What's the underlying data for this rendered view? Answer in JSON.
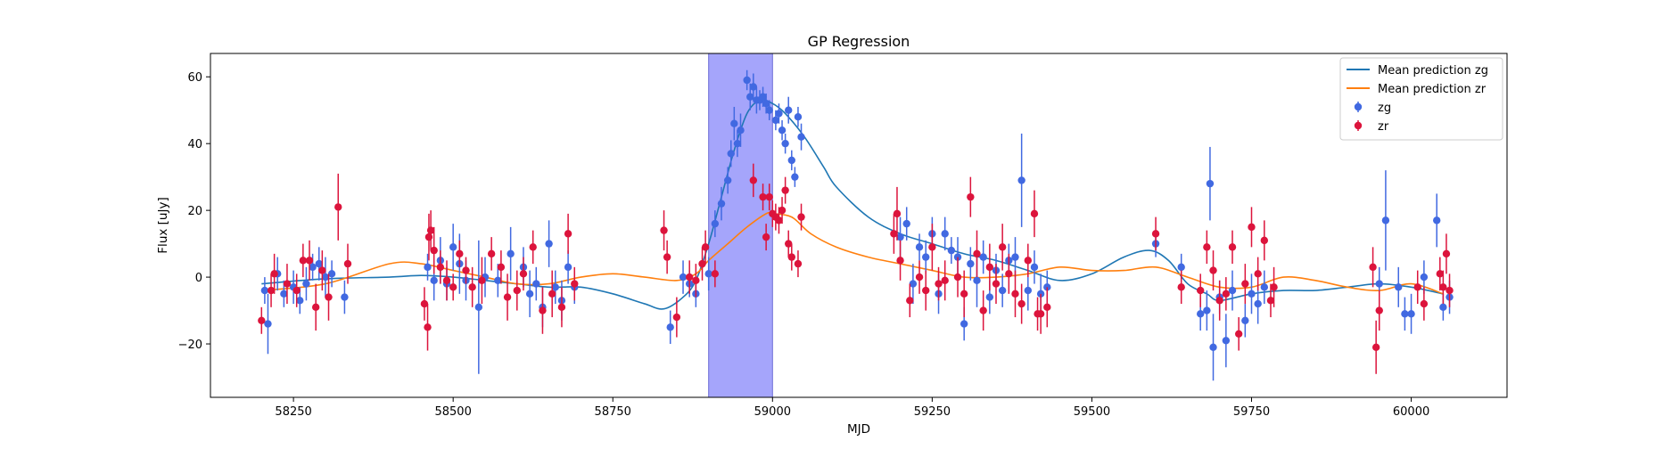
{
  "chart_data": {
    "type": "scatter",
    "title": "GP Regression",
    "xlabel": "MJD",
    "ylabel": "Flux [uJy]",
    "xlim": [
      58120,
      60150
    ],
    "ylim": [
      -36,
      67
    ],
    "xticks": [
      58250,
      58500,
      58750,
      59000,
      59250,
      59500,
      59750,
      60000
    ],
    "yticks": [
      -20,
      0,
      20,
      40,
      60
    ],
    "legend_position": "top-right",
    "highlight_span": {
      "x0": 58900,
      "x1": 59000,
      "color": "#a5a5fb"
    },
    "series": [
      {
        "name": "Mean prediction zg",
        "kind": "line",
        "color": "#1f77b4",
        "x": [
          58200,
          58300,
          58400,
          58450,
          58500,
          58550,
          58600,
          58650,
          58700,
          58750,
          58800,
          58830,
          58860,
          58880,
          58900,
          58920,
          58940,
          58960,
          58980,
          59000,
          59020,
          59050,
          59080,
          59100,
          59150,
          59200,
          59250,
          59300,
          59350,
          59400,
          59450,
          59500,
          59550,
          59590,
          59620,
          59650,
          59680,
          59700,
          59750,
          59800,
          59850,
          59900,
          59950,
          60000,
          60050
        ],
        "y": [
          -2,
          -0.5,
          0,
          0.5,
          0,
          -1,
          -2,
          -3,
          -3,
          -5,
          -8,
          -9.5,
          -6,
          -1,
          10,
          24,
          38,
          49,
          53,
          52,
          49,
          42,
          33,
          27,
          18,
          13,
          10,
          7,
          5,
          2,
          -1,
          1,
          6,
          8,
          5,
          -2,
          -5,
          -7,
          -5,
          -4,
          -4,
          -3,
          -2,
          -3,
          -5
        ]
      },
      {
        "name": "Mean prediction zr",
        "kind": "line",
        "color": "#ff7f0e",
        "x": [
          58200,
          58300,
          58400,
          58450,
          58500,
          58550,
          58600,
          58650,
          58700,
          58750,
          58800,
          58850,
          58880,
          58900,
          58930,
          58960,
          58990,
          59000,
          59030,
          59060,
          59100,
          59150,
          59200,
          59250,
          59300,
          59350,
          59400,
          59450,
          59500,
          59550,
          59600,
          59650,
          59700,
          59750,
          59800,
          59850,
          59900,
          59950,
          60000,
          60050
        ],
        "y": [
          -4,
          -2,
          4,
          4,
          2,
          0,
          -2,
          -2,
          0,
          1,
          0,
          -1,
          1,
          5,
          10,
          15,
          19,
          19,
          18,
          13,
          9,
          6,
          4,
          2,
          0,
          0,
          1,
          3,
          2,
          2,
          3,
          0,
          -3,
          -3,
          0,
          -1,
          -3,
          -4,
          -2,
          -5
        ]
      },
      {
        "name": "zg",
        "kind": "errorbar",
        "color": "#4169e1",
        "points": [
          [
            58205,
            -4,
            4
          ],
          [
            58210,
            -14,
            9
          ],
          [
            58225,
            1,
            5
          ],
          [
            58235,
            -5,
            4
          ],
          [
            58250,
            -3,
            5
          ],
          [
            58260,
            -7,
            4
          ],
          [
            58270,
            -2,
            5
          ],
          [
            58280,
            3,
            4
          ],
          [
            58290,
            4,
            5
          ],
          [
            58300,
            0,
            6
          ],
          [
            58310,
            1,
            4
          ],
          [
            58330,
            -6,
            5
          ],
          [
            58460,
            3,
            4
          ],
          [
            58470,
            -1,
            6
          ],
          [
            58480,
            5,
            7
          ],
          [
            58490,
            -2,
            5
          ],
          [
            58500,
            9,
            7
          ],
          [
            58510,
            4,
            9
          ],
          [
            58520,
            -1,
            6
          ],
          [
            58540,
            -9,
            20
          ],
          [
            58550,
            0,
            6
          ],
          [
            58570,
            -1,
            5
          ],
          [
            58590,
            7,
            8
          ],
          [
            58610,
            3,
            6
          ],
          [
            58620,
            -5,
            7
          ],
          [
            58630,
            -2,
            5
          ],
          [
            58640,
            -9,
            6
          ],
          [
            58650,
            10,
            7
          ],
          [
            58660,
            -3,
            5
          ],
          [
            58670,
            -7,
            6
          ],
          [
            58680,
            3,
            5
          ],
          [
            58690,
            -3,
            5
          ],
          [
            58840,
            -15,
            5
          ],
          [
            58860,
            0,
            5
          ],
          [
            58870,
            -2,
            4
          ],
          [
            58880,
            -5,
            4
          ],
          [
            58900,
            1,
            5
          ],
          [
            58910,
            16,
            4
          ],
          [
            58920,
            22,
            5
          ],
          [
            58930,
            29,
            4
          ],
          [
            58935,
            37,
            4
          ],
          [
            58940,
            46,
            5
          ],
          [
            58945,
            40,
            4
          ],
          [
            58950,
            44,
            5
          ],
          [
            58960,
            59,
            3
          ],
          [
            58965,
            54,
            4
          ],
          [
            58970,
            57,
            4
          ],
          [
            58975,
            53,
            4
          ],
          [
            58980,
            53,
            3
          ],
          [
            58985,
            54,
            3
          ],
          [
            58990,
            52,
            3
          ],
          [
            58995,
            50,
            3
          ],
          [
            59005,
            47,
            3
          ],
          [
            59010,
            49,
            3
          ],
          [
            59015,
            44,
            3
          ],
          [
            59020,
            40,
            3
          ],
          [
            59025,
            50,
            4
          ],
          [
            59030,
            35,
            3
          ],
          [
            59035,
            30,
            3
          ],
          [
            59040,
            48,
            3
          ],
          [
            59045,
            42,
            4
          ],
          [
            59200,
            12,
            6
          ],
          [
            59210,
            16,
            5
          ],
          [
            59220,
            -2,
            6
          ],
          [
            59230,
            9,
            4
          ],
          [
            59240,
            6,
            5
          ],
          [
            59250,
            13,
            5
          ],
          [
            59260,
            -5,
            6
          ],
          [
            59270,
            13,
            5
          ],
          [
            59280,
            8,
            4
          ],
          [
            59290,
            6,
            6
          ],
          [
            59300,
            -14,
            5
          ],
          [
            59310,
            4,
            5
          ],
          [
            59320,
            -1,
            8
          ],
          [
            59330,
            6,
            5
          ],
          [
            59340,
            -6,
            5
          ],
          [
            59350,
            2,
            5
          ],
          [
            59360,
            -4,
            5
          ],
          [
            59370,
            5,
            5
          ],
          [
            59380,
            6,
            6
          ],
          [
            59390,
            29,
            14
          ],
          [
            59400,
            -4,
            6
          ],
          [
            59410,
            3,
            5
          ],
          [
            59420,
            -5,
            6
          ],
          [
            59430,
            -3,
            5
          ],
          [
            59600,
            10,
            4
          ],
          [
            59640,
            3,
            4
          ],
          [
            59670,
            -11,
            5
          ],
          [
            59680,
            -10,
            6
          ],
          [
            59685,
            28,
            11
          ],
          [
            59690,
            -21,
            10
          ],
          [
            59700,
            -6,
            5
          ],
          [
            59710,
            -19,
            8
          ],
          [
            59720,
            -4,
            6
          ],
          [
            59740,
            -13,
            5
          ],
          [
            59750,
            -5,
            6
          ],
          [
            59760,
            -8,
            6
          ],
          [
            59770,
            -3,
            5
          ],
          [
            59950,
            -2,
            5
          ],
          [
            59960,
            17,
            15
          ],
          [
            59980,
            -3,
            6
          ],
          [
            59990,
            -11,
            5
          ],
          [
            60000,
            -11,
            6
          ],
          [
            60020,
            0,
            5
          ],
          [
            60040,
            17,
            8
          ],
          [
            60050,
            -9,
            4
          ],
          [
            60060,
            -6,
            5
          ]
        ]
      },
      {
        "name": "zr",
        "kind": "errorbar",
        "color": "#dc143c",
        "points": [
          [
            58200,
            -13,
            4
          ],
          [
            58215,
            -4,
            5
          ],
          [
            58220,
            1,
            6
          ],
          [
            58240,
            -2,
            6
          ],
          [
            58255,
            -4,
            5
          ],
          [
            58265,
            5,
            5
          ],
          [
            58275,
            5,
            6
          ],
          [
            58285,
            -9,
            7
          ],
          [
            58295,
            2,
            6
          ],
          [
            58305,
            -6,
            7
          ],
          [
            58320,
            21,
            10
          ],
          [
            58335,
            4,
            6
          ],
          [
            58455,
            -8,
            5
          ],
          [
            58460,
            -15,
            7
          ],
          [
            58462,
            12,
            7
          ],
          [
            58465,
            14,
            6
          ],
          [
            58470,
            8,
            7
          ],
          [
            58480,
            3,
            5
          ],
          [
            58490,
            -1,
            6
          ],
          [
            58500,
            -3,
            4
          ],
          [
            58510,
            7,
            4
          ],
          [
            58520,
            2,
            4
          ],
          [
            58530,
            -3,
            6
          ],
          [
            58545,
            -1,
            7
          ],
          [
            58560,
            7,
            5
          ],
          [
            58575,
            3,
            5
          ],
          [
            58585,
            -6,
            7
          ],
          [
            58600,
            -4,
            6
          ],
          [
            58610,
            1,
            5
          ],
          [
            58625,
            9,
            5
          ],
          [
            58640,
            -10,
            7
          ],
          [
            58655,
            -5,
            7
          ],
          [
            58670,
            -9,
            6
          ],
          [
            58680,
            13,
            6
          ],
          [
            58690,
            -2,
            5
          ],
          [
            58830,
            14,
            6
          ],
          [
            58835,
            6,
            5
          ],
          [
            58850,
            -12,
            6
          ],
          [
            58870,
            0,
            5
          ],
          [
            58880,
            -1,
            5
          ],
          [
            58890,
            4,
            5
          ],
          [
            58895,
            9,
            5
          ],
          [
            58910,
            1,
            4
          ],
          [
            58970,
            29,
            5
          ],
          [
            58985,
            24,
            4
          ],
          [
            58990,
            12,
            4
          ],
          [
            58995,
            24,
            4
          ],
          [
            59000,
            19,
            4
          ],
          [
            59005,
            18,
            4
          ],
          [
            59010,
            17,
            4
          ],
          [
            59015,
            20,
            4
          ],
          [
            59020,
            26,
            4
          ],
          [
            59025,
            10,
            4
          ],
          [
            59030,
            6,
            4
          ],
          [
            59040,
            4,
            4
          ],
          [
            59045,
            18,
            4
          ],
          [
            59190,
            13,
            6
          ],
          [
            59195,
            19,
            8
          ],
          [
            59200,
            5,
            6
          ],
          [
            59215,
            -7,
            5
          ],
          [
            59230,
            0,
            5
          ],
          [
            59240,
            -4,
            6
          ],
          [
            59250,
            9,
            7
          ],
          [
            59260,
            -2,
            5
          ],
          [
            59270,
            -1,
            6
          ],
          [
            59290,
            0,
            6
          ],
          [
            59300,
            -5,
            7
          ],
          [
            59310,
            24,
            6
          ],
          [
            59320,
            7,
            7
          ],
          [
            59330,
            -10,
            6
          ],
          [
            59340,
            3,
            7
          ],
          [
            59350,
            -2,
            6
          ],
          [
            59360,
            9,
            7
          ],
          [
            59370,
            1,
            6
          ],
          [
            59380,
            -5,
            7
          ],
          [
            59390,
            -8,
            6
          ],
          [
            59400,
            5,
            5
          ],
          [
            59410,
            19,
            7
          ],
          [
            59415,
            -11,
            5
          ],
          [
            59420,
            -11,
            6
          ],
          [
            59430,
            -9,
            6
          ],
          [
            59600,
            13,
            5
          ],
          [
            59640,
            -3,
            5
          ],
          [
            59670,
            -4,
            5
          ],
          [
            59680,
            9,
            5
          ],
          [
            59690,
            2,
            6
          ],
          [
            59700,
            -7,
            6
          ],
          [
            59710,
            -5,
            5
          ],
          [
            59720,
            9,
            5
          ],
          [
            59730,
            -17,
            5
          ],
          [
            59740,
            -2,
            6
          ],
          [
            59750,
            15,
            6
          ],
          [
            59760,
            1,
            5
          ],
          [
            59770,
            11,
            6
          ],
          [
            59780,
            -7,
            5
          ],
          [
            59785,
            -3,
            6
          ],
          [
            59940,
            3,
            6
          ],
          [
            59945,
            -21,
            8
          ],
          [
            59950,
            -10,
            6
          ],
          [
            60010,
            -3,
            5
          ],
          [
            60020,
            -8,
            5
          ],
          [
            60045,
            1,
            5
          ],
          [
            60050,
            -3,
            5
          ],
          [
            60055,
            7,
            6
          ],
          [
            60060,
            -4,
            5
          ]
        ]
      }
    ]
  }
}
